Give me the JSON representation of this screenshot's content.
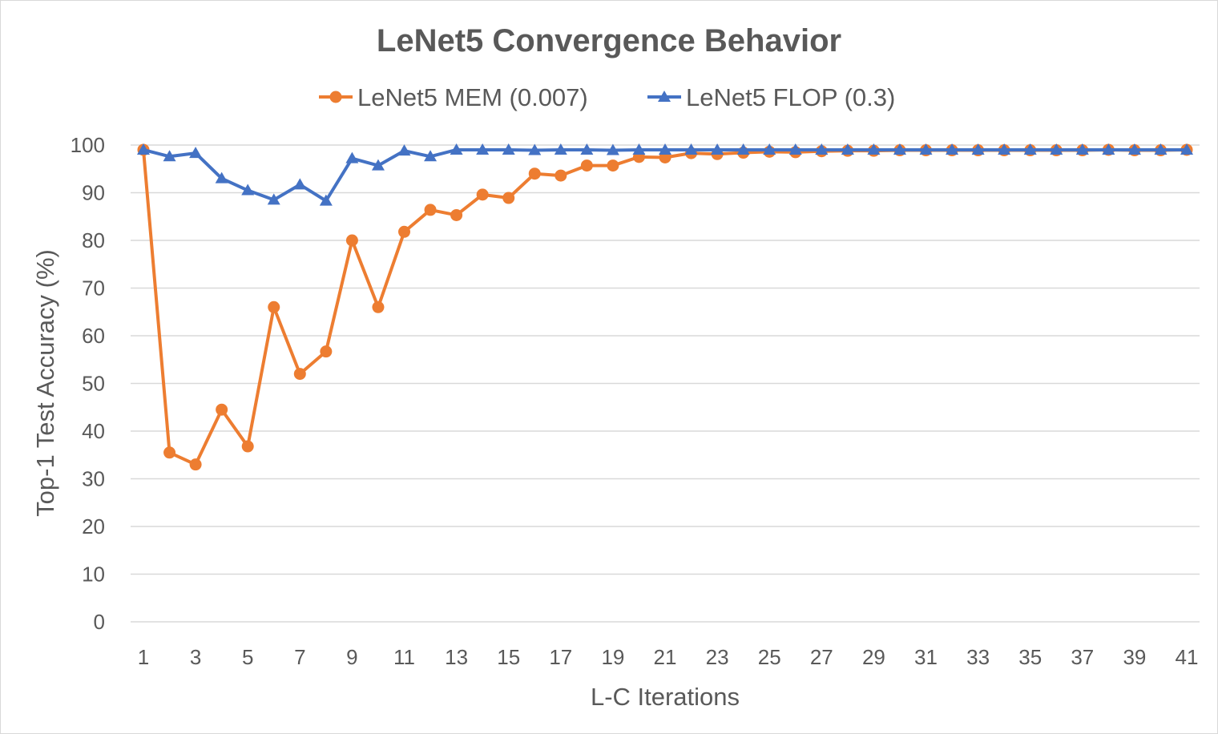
{
  "chart_data": {
    "type": "line",
    "title": "LeNet5 Convergence Behavior",
    "xlabel": "L-C Iterations",
    "ylabel": "Top-1 Test Accuracy (%)",
    "ylim": [
      0,
      100
    ],
    "yticks": [
      0,
      10,
      20,
      30,
      40,
      50,
      60,
      70,
      80,
      90,
      100
    ],
    "xlim": [
      1,
      41
    ],
    "xticks": [
      1,
      3,
      5,
      7,
      9,
      11,
      13,
      15,
      17,
      19,
      21,
      23,
      25,
      27,
      29,
      31,
      33,
      35,
      37,
      39,
      41
    ],
    "grid": true,
    "legend_position": "top",
    "x": [
      1,
      2,
      3,
      4,
      5,
      6,
      7,
      8,
      9,
      10,
      11,
      12,
      13,
      14,
      15,
      16,
      17,
      18,
      19,
      20,
      21,
      22,
      23,
      24,
      25,
      26,
      27,
      28,
      29,
      30,
      31,
      32,
      33,
      34,
      35,
      36,
      37,
      38,
      39,
      40,
      41
    ],
    "series": [
      {
        "name": "LeNet5 MEM (0.007)",
        "color": "#ED7D31",
        "marker": "circle",
        "values": [
          99.0,
          35.5,
          33.0,
          44.5,
          36.8,
          66.0,
          52.0,
          56.7,
          80.0,
          66.0,
          81.8,
          86.4,
          85.3,
          89.6,
          88.9,
          94.0,
          93.6,
          95.7,
          95.7,
          97.5,
          97.4,
          98.3,
          98.1,
          98.4,
          98.6,
          98.5,
          98.7,
          98.8,
          98.8,
          98.9,
          98.9,
          98.9,
          98.9,
          98.9,
          98.9,
          98.9,
          98.9,
          99.0,
          98.9,
          98.9,
          99.0
        ]
      },
      {
        "name": "LeNet5 FLOP (0.3)",
        "color": "#4472C4",
        "marker": "triangle",
        "values": [
          99.0,
          97.6,
          98.3,
          93.0,
          90.5,
          88.5,
          91.7,
          88.3,
          97.2,
          95.7,
          98.8,
          97.6,
          99.0,
          99.0,
          99.0,
          98.9,
          99.0,
          99.0,
          98.9,
          99.0,
          99.0,
          99.0,
          99.0,
          99.0,
          99.0,
          99.0,
          99.0,
          99.0,
          99.0,
          99.0,
          99.0,
          99.0,
          99.0,
          99.0,
          99.0,
          99.0,
          99.0,
          99.0,
          99.0,
          99.0,
          99.0
        ]
      }
    ]
  }
}
